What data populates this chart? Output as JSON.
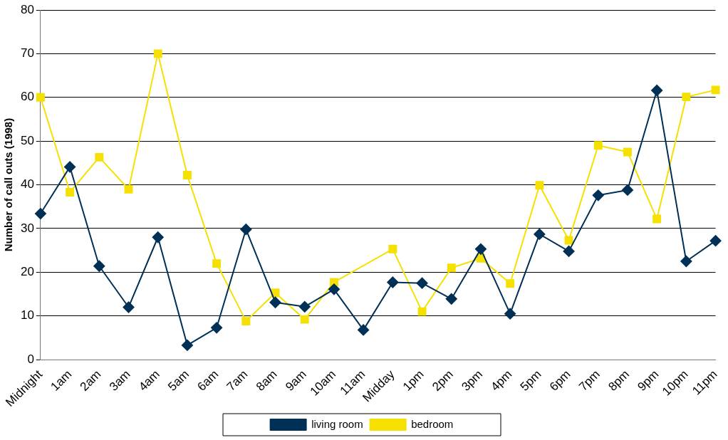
{
  "chart_data": {
    "type": "line",
    "ylabel": "Number of call outs (1998)",
    "categories": [
      "Midnight",
      "1am",
      "2am",
      "3am",
      "4am",
      "5am",
      "6am",
      "7am",
      "8am",
      "9am",
      "10am",
      "11am",
      "Midday",
      "1pm",
      "2pm",
      "3pm",
      "4pm",
      "5pm",
      "6pm",
      "7pm",
      "8pm",
      "9pm",
      "10pm",
      "11pm"
    ],
    "series": [
      {
        "name": "living room",
        "color": "#003056",
        "marker": "diamond",
        "values": [
          33.4,
          44.1,
          21.4,
          12,
          28,
          3.3,
          7.3,
          29.8,
          13.1,
          12.1,
          16.1,
          6.8,
          17.7,
          17.5,
          13.9,
          25.3,
          10.5,
          28.7,
          24.8,
          37.6,
          38.8,
          61.6,
          22.5,
          27.2
        ]
      },
      {
        "name": "bedroom",
        "color": "#f5e000",
        "marker": "square",
        "values": [
          60,
          38.3,
          46.3,
          39,
          70,
          42.2,
          22,
          8.8,
          15.3,
          9.2,
          17.7,
          null,
          25.3,
          11,
          21,
          23.2,
          17.4,
          39.9,
          27.3,
          49,
          47.5,
          32.2,
          60.1,
          61.7
        ]
      }
    ],
    "ylim": [
      0,
      80
    ],
    "yticks": [
      0,
      10,
      20,
      30,
      40,
      50,
      60,
      70,
      80
    ],
    "grid": "y",
    "legend": "bottom"
  }
}
